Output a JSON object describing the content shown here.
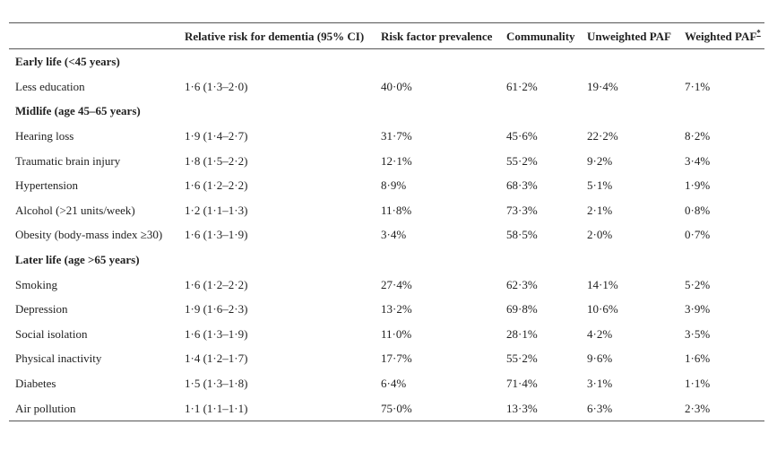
{
  "table": {
    "headers": [
      "",
      "Relative risk for dementia (95% CI)",
      "Risk factor prevalence",
      "Communality",
      "Unweighted PAF",
      "Weighted PAF"
    ],
    "footnote_marker": "*",
    "sections": [
      {
        "title": "Early life (<45 years)",
        "rows": [
          [
            "Less education",
            "1·6 (1·3–2·0)",
            "40·0%",
            "61·2%",
            "19·4%",
            "7·1%"
          ]
        ]
      },
      {
        "title": "Midlife (age 45–65 years)",
        "rows": [
          [
            "Hearing loss",
            "1·9 (1·4–2·7)",
            "31·7%",
            "45·6%",
            "22·2%",
            "8·2%"
          ],
          [
            "Traumatic brain injury",
            "1·8 (1·5–2·2)",
            "12·1%",
            "55·2%",
            "9·2%",
            "3·4%"
          ],
          [
            "Hypertension",
            "1·6 (1·2–2·2)",
            "8·9%",
            "68·3%",
            "5·1%",
            "1·9%"
          ],
          [
            "Alcohol (>21 units/week)",
            "1·2 (1·1–1·3)",
            "11·8%",
            "73·3%",
            "2·1%",
            "0·8%"
          ],
          [
            "Obesity (body-mass index ≥30)",
            "1·6 (1·3–1·9)",
            "3·4%",
            "58·5%",
            "2·0%",
            "0·7%"
          ]
        ]
      },
      {
        "title": "Later life (age >65 years)",
        "rows": [
          [
            "Smoking",
            "1·6 (1·2–2·2)",
            "27·4%",
            "62·3%",
            "14·1%",
            "5·2%"
          ],
          [
            "Depression",
            "1·9 (1·6–2·3)",
            "13·2%",
            "69·8%",
            "10·6%",
            "3·9%"
          ],
          [
            "Social isolation",
            "1·6 (1·3–1·9)",
            "11·0%",
            "28·1%",
            "4·2%",
            "3·5%"
          ],
          [
            "Physical inactivity",
            "1·4 (1·2–1·7)",
            "17·7%",
            "55·2%",
            "9·6%",
            "1·6%"
          ],
          [
            "Diabetes",
            "1·5 (1·3–1·8)",
            "6·4%",
            "71·4%",
            "3·1%",
            "1·1%"
          ],
          [
            "Air pollution",
            "1·1 (1·1–1·1)",
            "75·0%",
            "13·3%",
            "6·3%",
            "2·3%"
          ]
        ]
      }
    ]
  }
}
